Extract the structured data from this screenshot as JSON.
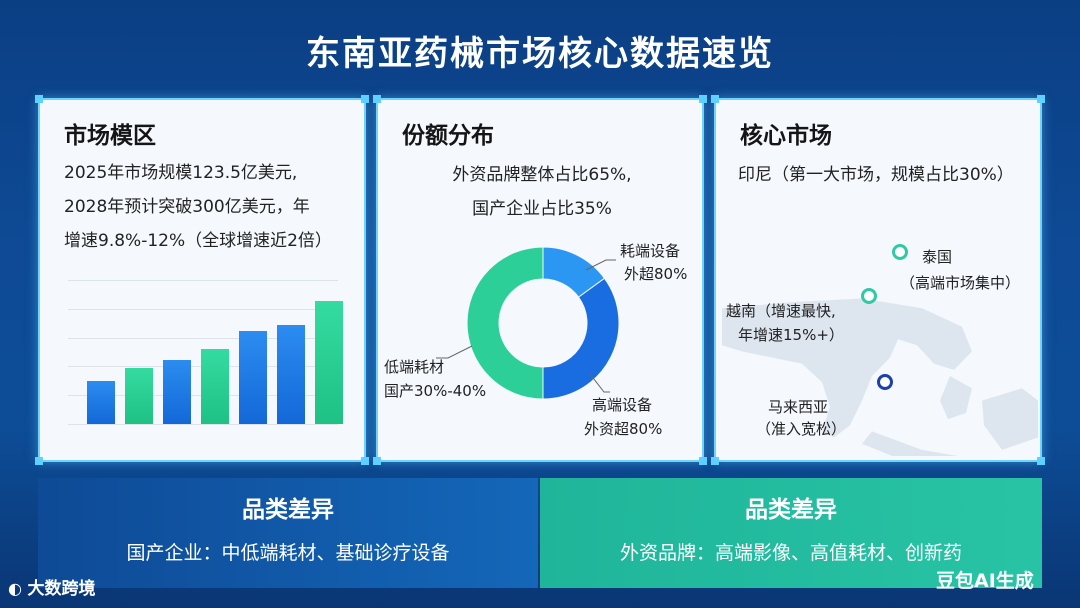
{
  "title": "东南亚药械市场核心数据速览",
  "market": {
    "heading": "市场模区",
    "lines": [
      "2025年市场规模123.5亿美元,",
      "2028年预计突破300亿美元，年",
      "增速9.8%-12%（全球增速近2倍）"
    ]
  },
  "share": {
    "heading": "份额分布",
    "lines": [
      "外资品牌整体占比65%,",
      "国产企业占比35%"
    ],
    "labels": {
      "consumable_a": "耗端设备",
      "consumable_b": "外超80%",
      "highend_a": "高端设备",
      "highend_b": "外资超80%",
      "low_a": "低端耗材",
      "low_b": "国产30%-40%"
    }
  },
  "core": {
    "heading": "核心市场",
    "line": "印尼（第一大市场，规模占比30%）",
    "thailand_a": "泰国",
    "thailand_b": "（高端市场集中）",
    "vietnam_a": "越南（增速最快,",
    "vietnam_b": "年增速15%+）",
    "malaysia_a": "马来西亚",
    "malaysia_b": "（准入宽松）"
  },
  "bottom_left": {
    "title": "品类差异",
    "body": "国产企业：中低端耗材、基础诊疗设备"
  },
  "bottom_right": {
    "title": "品类差异",
    "body": "外资品牌：高端影像、高值耗材、创新药"
  },
  "watermark_left": "大数跨境",
  "watermark_right": "豆包AI生成",
  "colors": {
    "blue": "#1b78e6",
    "green": "#22c98c",
    "teal": "#30c9a6",
    "navy": "#1c3fae"
  },
  "chart_data": [
    {
      "type": "bar",
      "values": [
        27,
        35,
        40,
        47,
        58,
        62,
        77
      ],
      "colors": [
        "blue",
        "green",
        "blue",
        "green",
        "blue",
        "blue",
        "green"
      ],
      "ylim": [
        0,
        90
      ],
      "grid": true
    },
    {
      "type": "pie",
      "donut": true,
      "slices": [
        {
          "label": "耗端设备",
          "value": 15,
          "color": "#2b97f2"
        },
        {
          "label": "高端设备",
          "value": 35,
          "color": "#1a6de0"
        },
        {
          "label": "低端耗材",
          "value": 50,
          "color": "#2ccf98"
        }
      ]
    }
  ]
}
